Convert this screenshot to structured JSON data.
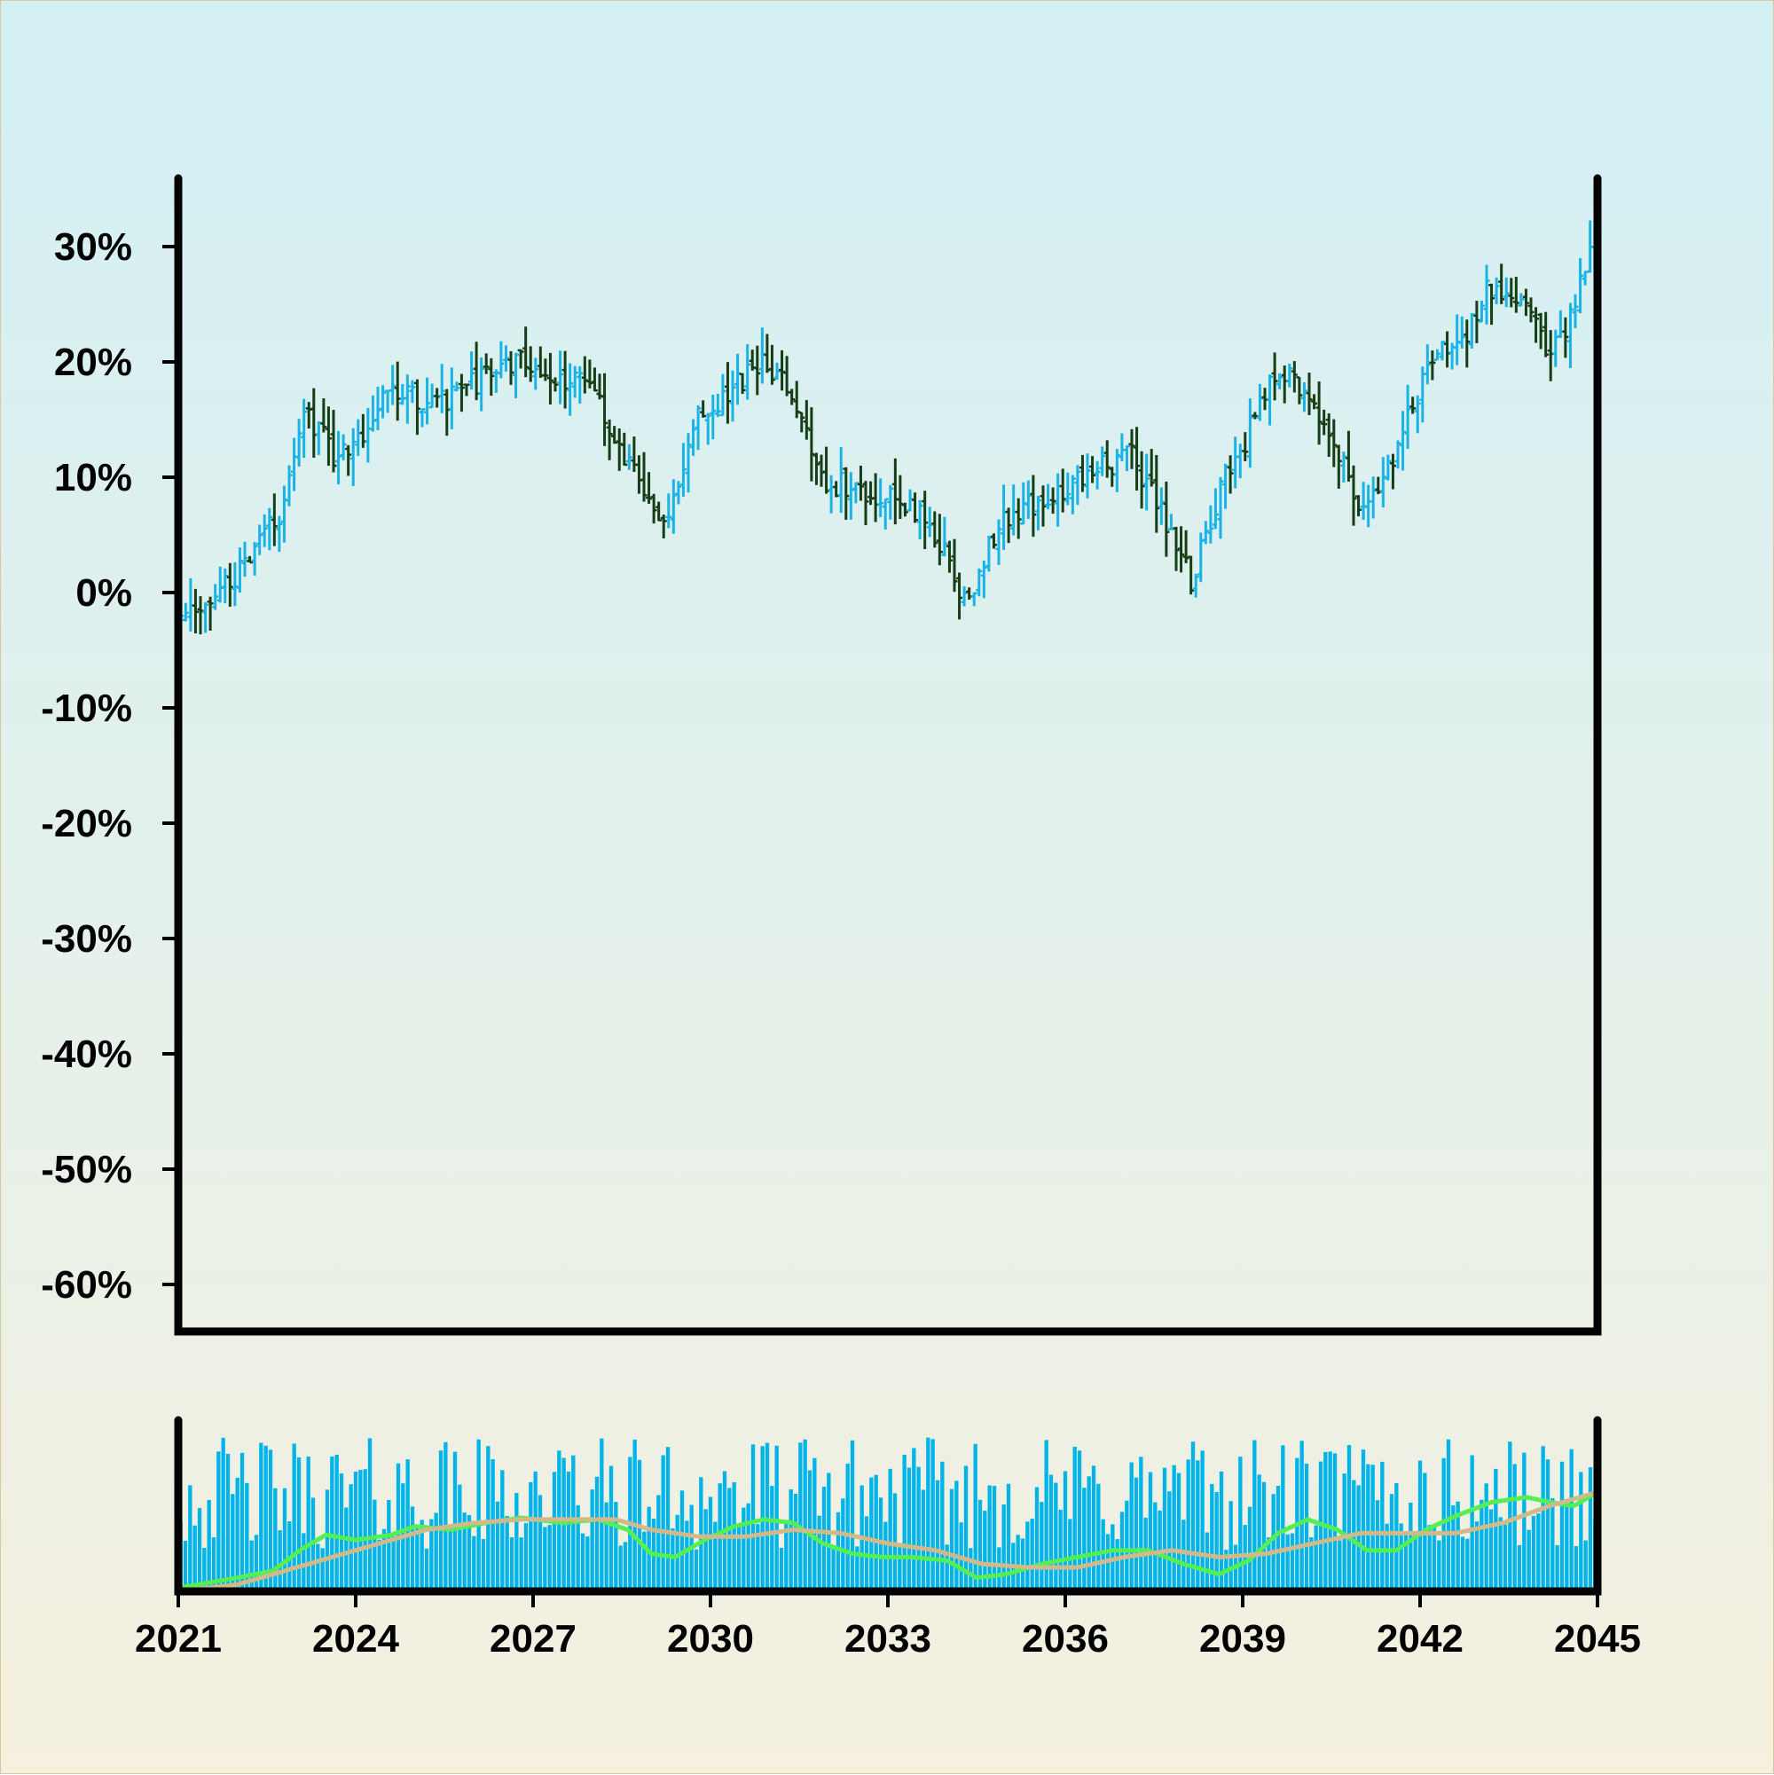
{
  "chart_data": [
    {
      "type": "ohlc",
      "title": "",
      "xlabel": "",
      "ylabel": "",
      "ylim": [
        -64,
        36
      ],
      "xlim": [
        2021,
        2045
      ],
      "y_ticks": [
        {
          "value": 30,
          "label": "30%"
        },
        {
          "value": 20,
          "label": "20%"
        },
        {
          "value": 10,
          "label": "10%"
        },
        {
          "value": 0,
          "label": "0%"
        },
        {
          "value": -10,
          "label": "-10%"
        },
        {
          "value": -20,
          "label": "-20%"
        },
        {
          "value": -30,
          "label": "-30%"
        },
        {
          "value": -40,
          "label": "-40%"
        },
        {
          "value": -50,
          "label": "-50%"
        },
        {
          "value": -60,
          "label": "-60%"
        }
      ],
      "grid": false,
      "legend": "none",
      "colors": {
        "up": "#1bb2e4",
        "down": "#163d16",
        "axis": "#000000"
      },
      "bars_per_year": 12,
      "trend_anchors": [
        [
          2021.0,
          -3.5
        ],
        [
          2022.2,
          2
        ],
        [
          2022.8,
          7
        ],
        [
          2023.2,
          16
        ],
        [
          2023.7,
          12
        ],
        [
          2024.2,
          14
        ],
        [
          2024.6,
          18
        ],
        [
          2025.3,
          16
        ],
        [
          2026.0,
          18
        ],
        [
          2026.9,
          20.5
        ],
        [
          2027.5,
          18
        ],
        [
          2027.9,
          19.5
        ],
        [
          2028.4,
          14
        ],
        [
          2029.0,
          8
        ],
        [
          2029.3,
          6
        ],
        [
          2029.9,
          16
        ],
        [
          2030.3,
          16.5
        ],
        [
          2030.9,
          20
        ],
        [
          2031.5,
          17
        ],
        [
          2031.9,
          10
        ],
        [
          2032.5,
          9
        ],
        [
          2033.0,
          8.5
        ],
        [
          2033.6,
          7
        ],
        [
          2034.2,
          2
        ],
        [
          2034.4,
          -1.5
        ],
        [
          2034.9,
          5.5
        ],
        [
          2035.5,
          7.5
        ],
        [
          2036.0,
          9
        ],
        [
          2036.5,
          10.5
        ],
        [
          2037.2,
          12
        ],
        [
          2037.7,
          7
        ],
        [
          2038.2,
          1
        ],
        [
          2038.7,
          9
        ],
        [
          2039.2,
          14
        ],
        [
          2039.6,
          19
        ],
        [
          2040.0,
          18.5
        ],
        [
          2040.5,
          15
        ],
        [
          2041.0,
          8
        ],
        [
          2041.4,
          8
        ],
        [
          2041.8,
          15
        ],
        [
          2042.3,
          20
        ],
        [
          2042.8,
          22
        ],
        [
          2043.2,
          26
        ],
        [
          2043.8,
          26
        ],
        [
          2044.2,
          21.5
        ],
        [
          2044.5,
          22
        ],
        [
          2045.0,
          31
        ]
      ]
    },
    {
      "type": "bar",
      "title": "",
      "series": [
        {
          "name": "",
          "kind": "volume-bars",
          "color": "#00b4e8"
        },
        {
          "name": "",
          "kind": "fast-moving-average",
          "color": "#55ee55",
          "points": [
            [
              2021.0,
              0.02
            ],
            [
              2022.0,
              0.08
            ],
            [
              2022.6,
              0.12
            ],
            [
              2023.1,
              0.25
            ],
            [
              2023.5,
              0.33
            ],
            [
              2024.0,
              0.3
            ],
            [
              2024.6,
              0.33
            ],
            [
              2025.0,
              0.38
            ],
            [
              2025.6,
              0.36
            ],
            [
              2026.2,
              0.4
            ],
            [
              2026.8,
              0.43
            ],
            [
              2027.5,
              0.4
            ],
            [
              2028.1,
              0.42
            ],
            [
              2028.6,
              0.36
            ],
            [
              2029.0,
              0.22
            ],
            [
              2029.4,
              0.2
            ],
            [
              2029.9,
              0.3
            ],
            [
              2030.4,
              0.38
            ],
            [
              2030.9,
              0.42
            ],
            [
              2031.4,
              0.4
            ],
            [
              2031.9,
              0.28
            ],
            [
              2032.4,
              0.22
            ],
            [
              2032.9,
              0.2
            ],
            [
              2033.4,
              0.2
            ],
            [
              2034.0,
              0.18
            ],
            [
              2034.5,
              0.08
            ],
            [
              2035.0,
              0.1
            ],
            [
              2035.6,
              0.16
            ],
            [
              2036.2,
              0.2
            ],
            [
              2036.8,
              0.24
            ],
            [
              2037.4,
              0.24
            ],
            [
              2038.0,
              0.16
            ],
            [
              2038.6,
              0.1
            ],
            [
              2039.1,
              0.18
            ],
            [
              2039.6,
              0.34
            ],
            [
              2040.1,
              0.42
            ],
            [
              2040.6,
              0.36
            ],
            [
              2041.1,
              0.24
            ],
            [
              2041.6,
              0.24
            ],
            [
              2042.1,
              0.36
            ],
            [
              2042.6,
              0.44
            ],
            [
              2043.2,
              0.52
            ],
            [
              2043.8,
              0.55
            ],
            [
              2044.2,
              0.52
            ],
            [
              2044.6,
              0.5
            ],
            [
              2045.0,
              0.58
            ]
          ]
        },
        {
          "name": "",
          "kind": "slow-moving-average",
          "color": "#d2b98a",
          "points": [
            [
              2021.0,
              0.0
            ],
            [
              2022.0,
              0.04
            ],
            [
              2022.8,
              0.12
            ],
            [
              2023.6,
              0.2
            ],
            [
              2024.4,
              0.28
            ],
            [
              2025.2,
              0.36
            ],
            [
              2026.0,
              0.4
            ],
            [
              2026.8,
              0.42
            ],
            [
              2027.6,
              0.42
            ],
            [
              2028.4,
              0.42
            ],
            [
              2029.0,
              0.36
            ],
            [
              2029.8,
              0.32
            ],
            [
              2030.6,
              0.32
            ],
            [
              2031.4,
              0.36
            ],
            [
              2032.2,
              0.34
            ],
            [
              2033.0,
              0.28
            ],
            [
              2033.8,
              0.24
            ],
            [
              2034.6,
              0.16
            ],
            [
              2035.4,
              0.14
            ],
            [
              2036.2,
              0.14
            ],
            [
              2037.0,
              0.2
            ],
            [
              2037.8,
              0.24
            ],
            [
              2038.6,
              0.2
            ],
            [
              2039.4,
              0.22
            ],
            [
              2040.2,
              0.28
            ],
            [
              2041.0,
              0.34
            ],
            [
              2041.8,
              0.34
            ],
            [
              2042.6,
              0.34
            ],
            [
              2043.4,
              0.4
            ],
            [
              2044.2,
              0.5
            ],
            [
              2045.0,
              0.58
            ]
          ]
        }
      ],
      "x_ticks": [
        {
          "value": 2021,
          "label": "2021"
        },
        {
          "value": 2024,
          "label": "2024"
        },
        {
          "value": 2027,
          "label": "2027"
        },
        {
          "value": 2030,
          "label": "2030"
        },
        {
          "value": 2033,
          "label": "2033"
        },
        {
          "value": 2036,
          "label": "2036"
        },
        {
          "value": 2039,
          "label": "2039"
        },
        {
          "value": 2042,
          "label": "2042"
        },
        {
          "value": 2045,
          "label": "2045"
        }
      ],
      "grid": false
    }
  ]
}
